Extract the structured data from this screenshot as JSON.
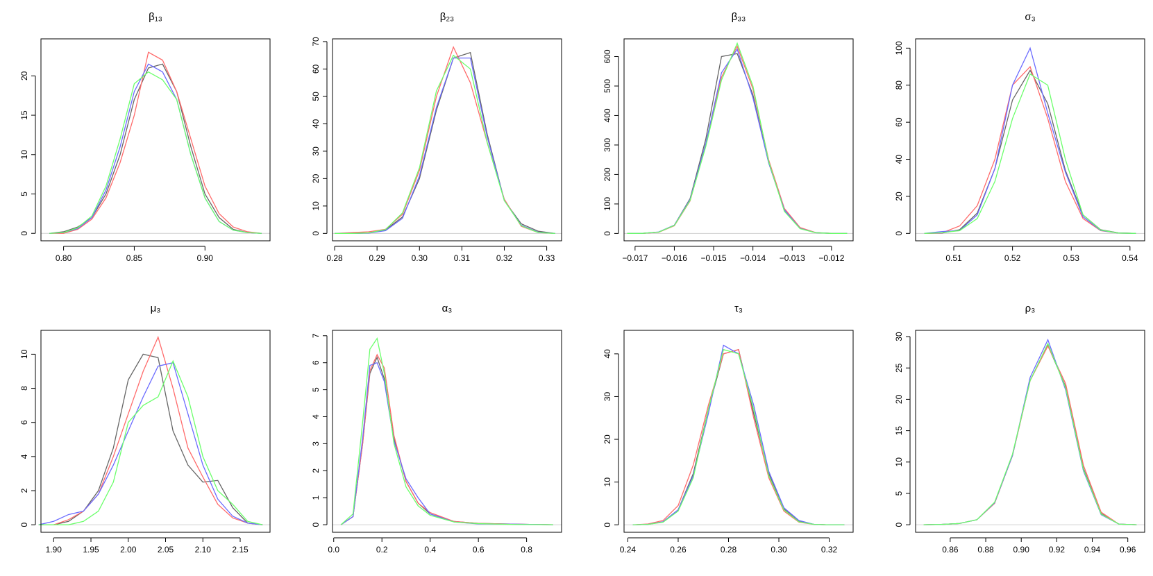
{
  "chart_data": [
    {
      "type": "line",
      "title": "β₁₃",
      "x": [
        0.79,
        0.8,
        0.81,
        0.82,
        0.83,
        0.84,
        0.85,
        0.86,
        0.87,
        0.88,
        0.89,
        0.9,
        0.91,
        0.92,
        0.93,
        0.94
      ],
      "series": [
        {
          "color": "#666666",
          "values": [
            0,
            0.2,
            0.8,
            2,
            5,
            10,
            17,
            21,
            21.5,
            18,
            11,
            5,
            2,
            0.5,
            0.1,
            0
          ]
        },
        {
          "color": "#ff6b6b",
          "values": [
            0,
            0,
            0.5,
            1.8,
            4.5,
            9,
            15,
            23,
            22,
            18,
            12,
            6,
            2.5,
            0.8,
            0.2,
            0
          ]
        },
        {
          "color": "#6b6bff",
          "values": [
            0,
            0.1,
            0.6,
            2,
            5.5,
            11,
            18,
            21.5,
            20.5,
            17,
            10,
            4.5,
            1.5,
            0.4,
            0.1,
            0
          ]
        },
        {
          "color": "#6bff6b",
          "values": [
            0,
            0.1,
            0.7,
            2.2,
            6,
            12,
            19,
            20.5,
            19.5,
            17,
            10,
            4.5,
            1.5,
            0.4,
            0.1,
            0
          ]
        }
      ],
      "xlim": [
        0.784,
        0.946
      ],
      "ylim": [
        -0.95,
        24.7
      ],
      "xticks": [
        {
          "value": 0.8,
          "label": "0.80"
        },
        0.85,
        {
          "value": 0.9,
          "label": "0.90"
        }
      ],
      "yticks": [
        0,
        5,
        10,
        15,
        20
      ]
    },
    {
      "type": "line",
      "title": "β₂₃",
      "x": [
        0.28,
        0.284,
        0.288,
        0.292,
        0.296,
        0.3,
        0.304,
        0.308,
        0.312,
        0.316,
        0.32,
        0.324,
        0.328,
        0.332
      ],
      "series": [
        {
          "color": "#666666",
          "values": [
            0,
            0,
            0.2,
            1.3,
            6,
            20,
            45,
            64,
            66,
            36,
            12,
            3.5,
            0.8,
            0
          ]
        },
        {
          "color": "#ff6b6b",
          "values": [
            0,
            0.3,
            0.6,
            1.5,
            7,
            23,
            50,
            68,
            55,
            33,
            12.5,
            2.6,
            0.3,
            0
          ]
        },
        {
          "color": "#6b6bff",
          "values": [
            0,
            0,
            0.1,
            1,
            5.5,
            21,
            46,
            64,
            64,
            35,
            12,
            3,
            0.4,
            0
          ]
        },
        {
          "color": "#6bff6b",
          "values": [
            0,
            0,
            0.2,
            1.4,
            7.5,
            24,
            52,
            65,
            60,
            33,
            12,
            2.8,
            0.3,
            0
          ]
        }
      ],
      "xlim": [
        0.2795,
        0.3335
      ],
      "ylim": [
        -2.7,
        71
      ],
      "xticks": [
        0.28,
        0.29,
        {
          "value": 0.3,
          "label": "0.30"
        },
        0.31,
        0.32,
        0.33
      ],
      "yticks": [
        0,
        10,
        20,
        30,
        40,
        50,
        60,
        70
      ]
    },
    {
      "type": "line",
      "title": "β₃₃",
      "x": [
        -0.0172,
        -0.0168,
        -0.0164,
        -0.016,
        -0.0156,
        -0.0152,
        -0.0148,
        -0.0144,
        -0.014,
        -0.0136,
        -0.0132,
        -0.0128,
        -0.0124,
        -0.012,
        -0.0116
      ],
      "series": [
        {
          "color": "#666666",
          "values": [
            0,
            0.5,
            4.5,
            28,
            118,
            320,
            600,
            610,
            470,
            240,
            80,
            18,
            2.5,
            0.3,
            0
          ]
        },
        {
          "color": "#ff6b6b",
          "values": [
            0,
            0.4,
            4,
            26,
            110,
            300,
            530,
            635,
            490,
            250,
            85,
            20,
            3,
            0.5,
            0
          ]
        },
        {
          "color": "#6b6bff",
          "values": [
            0,
            0.6,
            5,
            28,
            115,
            305,
            545,
            625,
            460,
            240,
            80,
            17,
            2.5,
            0.3,
            0
          ]
        },
        {
          "color": "#6bff6b",
          "values": [
            0,
            0.5,
            4.5,
            27,
            112,
            295,
            520,
            645,
            500,
            245,
            75,
            16,
            2.2,
            0.2,
            0
          ]
        }
      ],
      "xlim": [
        -0.01728,
        -0.01145
      ],
      "ylim": [
        -25,
        660
      ],
      "xticks": [
        {
          "value": -0.017,
          "label": "−0.017"
        },
        {
          "value": -0.016,
          "label": "−0.016"
        },
        {
          "value": -0.015,
          "label": "−0.015"
        },
        {
          "value": -0.014,
          "label": "−0.014"
        },
        {
          "value": -0.013,
          "label": "−0.013"
        },
        {
          "value": -0.012,
          "label": "−0.012"
        }
      ],
      "yticks": [
        0,
        100,
        200,
        300,
        400,
        500,
        600
      ]
    },
    {
      "type": "line",
      "title": "σ₃",
      "x": [
        0.505,
        0.508,
        0.511,
        0.514,
        0.517,
        0.52,
        0.523,
        0.526,
        0.529,
        0.532,
        0.535,
        0.538,
        0.541
      ],
      "series": [
        {
          "color": "#666666",
          "values": [
            0,
            0.2,
            2,
            11,
            35,
            72,
            88,
            70,
            34,
            10,
            2,
            0.3,
            0
          ]
        },
        {
          "color": "#ff6b6b",
          "values": [
            0,
            0.3,
            4,
            15,
            40,
            80,
            90,
            62,
            28,
            8,
            1.5,
            0.2,
            0
          ]
        },
        {
          "color": "#6b6bff",
          "values": [
            0,
            1,
            1.5,
            10,
            35,
            80,
            100,
            65,
            33,
            9,
            1.6,
            0.2,
            0
          ]
        },
        {
          "color": "#6bff6b",
          "values": [
            0,
            0.4,
            1.5,
            8,
            28,
            62,
            86,
            80,
            40,
            10,
            1.8,
            0.2,
            0
          ]
        }
      ],
      "xlim": [
        0.5035,
        0.5425
      ],
      "ylim": [
        -4,
        105
      ],
      "xticks": [
        0.51,
        0.52,
        0.53,
        0.54
      ],
      "yticks": [
        0,
        20,
        40,
        60,
        80,
        100
      ]
    },
    {
      "type": "line",
      "title": "μ₃",
      "x": [
        1.88,
        1.9,
        1.92,
        1.94,
        1.96,
        1.98,
        2.0,
        2.02,
        2.04,
        2.06,
        2.08,
        2.1,
        2.12,
        2.14,
        2.16,
        2.18
      ],
      "series": [
        {
          "color": "#666666",
          "values": [
            0,
            0,
            0.2,
            0.8,
            2,
            4.5,
            8.5,
            10,
            9.8,
            5.5,
            3.5,
            2.5,
            2.6,
            1,
            0.1,
            0
          ]
        },
        {
          "color": "#ff6b6b",
          "values": [
            0,
            0,
            0.3,
            0.8,
            1.8,
            4,
            6.5,
            9,
            11,
            8,
            4.5,
            2.8,
            1.2,
            0.4,
            0.1,
            0
          ]
        },
        {
          "color": "#6b6bff",
          "values": [
            0,
            0.2,
            0.6,
            0.8,
            1.8,
            3.5,
            5.5,
            7.5,
            9.3,
            9.5,
            6.5,
            3.5,
            1.5,
            0.5,
            0.1,
            0
          ]
        },
        {
          "color": "#6bff6b",
          "values": [
            0,
            0,
            0,
            0.2,
            0.8,
            2.5,
            6,
            7,
            7.5,
            9.6,
            7.5,
            4,
            2,
            1.2,
            0.2,
            0
          ]
        }
      ],
      "xlim": [
        1.883,
        2.19
      ],
      "ylim": [
        -0.44,
        11.4
      ],
      "xticks": [
        {
          "value": 1.9,
          "label": "1.90"
        },
        1.95,
        {
          "value": 2,
          "label": "2.00"
        },
        2.05,
        {
          "value": 2.1,
          "label": "2.10"
        },
        2.15
      ],
      "yticks": [
        0,
        2,
        4,
        6,
        8,
        10
      ]
    },
    {
      "type": "line",
      "title": "α₃",
      "x": [
        0.03,
        0.08,
        0.12,
        0.15,
        0.18,
        0.21,
        0.25,
        0.3,
        0.35,
        0.4,
        0.5,
        0.6,
        0.75,
        0.91
      ],
      "series": [
        {
          "color": "#666666",
          "values": [
            0,
            0.3,
            3,
            5.6,
            6.2,
            5.4,
            3.2,
            1.6,
            0.8,
            0.4,
            0.12,
            0.05,
            0.02,
            0
          ]
        },
        {
          "color": "#ff6b6b",
          "values": [
            0,
            0.3,
            3,
            5.7,
            6.3,
            5.8,
            3.3,
            1.6,
            0.8,
            0.45,
            0.12,
            0.05,
            0.02,
            0
          ]
        },
        {
          "color": "#6b6bff",
          "values": [
            0,
            0.3,
            3.2,
            5.9,
            6,
            5.3,
            3.1,
            1.7,
            1.0,
            0.4,
            0.1,
            0.03,
            0.02,
            0
          ]
        },
        {
          "color": "#6bff6b",
          "values": [
            0,
            0.4,
            3.8,
            6.5,
            6.9,
            5.6,
            3,
            1.4,
            0.7,
            0.35,
            0.1,
            0.04,
            0.01,
            0
          ]
        }
      ],
      "xlim": [
        -0.005,
        0.945
      ],
      "ylim": [
        -0.28,
        7.2
      ],
      "xticks": [
        {
          "value": 0,
          "label": "0.0"
        },
        0.2,
        0.4,
        0.6,
        0.8
      ],
      "yticks": [
        0,
        1,
        2,
        3,
        4,
        5,
        6,
        7
      ]
    },
    {
      "type": "line",
      "title": "τ₃",
      "x": [
        0.242,
        0.248,
        0.254,
        0.26,
        0.266,
        0.272,
        0.278,
        0.284,
        0.29,
        0.296,
        0.302,
        0.308,
        0.314,
        0.32,
        0.326
      ],
      "series": [
        {
          "color": "#666666",
          "values": [
            0,
            0.1,
            0.7,
            3.5,
            12,
            27,
            40,
            41,
            26,
            12,
            3.7,
            0.8,
            0.1,
            0,
            0
          ]
        },
        {
          "color": "#ff6b6b",
          "values": [
            0,
            0.2,
            1,
            4.5,
            14,
            28,
            40,
            41,
            25,
            11,
            3.2,
            0.6,
            0.1,
            0,
            0
          ]
        },
        {
          "color": "#6b6bff",
          "values": [
            0,
            0.1,
            0.7,
            3.5,
            11.5,
            26,
            42,
            40,
            28,
            12.5,
            4,
            1,
            0.1,
            0,
            0
          ]
        },
        {
          "color": "#6bff6b",
          "values": [
            0,
            0.1,
            0.6,
            3.2,
            11,
            27,
            41,
            40,
            27,
            11.5,
            3.5,
            0.7,
            0.1,
            0,
            0
          ]
        }
      ],
      "xlim": [
        0.2385,
        0.3295
      ],
      "ylim": [
        -1.75,
        45.5
      ],
      "xticks": [
        0.24,
        0.26,
        0.28,
        {
          "value": 0.3,
          "label": "0.30"
        },
        0.32
      ],
      "yticks": [
        0,
        10,
        20,
        30,
        40
      ]
    },
    {
      "type": "line",
      "title": "ρ₃",
      "x": [
        0.845,
        0.855,
        0.865,
        0.875,
        0.885,
        0.895,
        0.905,
        0.915,
        0.925,
        0.935,
        0.945,
        0.955,
        0.965
      ],
      "series": [
        {
          "color": "#666666",
          "values": [
            0,
            0.05,
            0.2,
            0.8,
            3.5,
            11,
            23,
            28.6,
            22,
            9,
            1.8,
            0.1,
            0
          ]
        },
        {
          "color": "#ff6b6b",
          "values": [
            0,
            0.05,
            0.2,
            0.8,
            3.4,
            11,
            23,
            28.5,
            22.5,
            9.5,
            2,
            0.1,
            0
          ]
        },
        {
          "color": "#6b6bff",
          "values": [
            0,
            0.05,
            0.2,
            0.8,
            3.5,
            11,
            23.5,
            29.5,
            21.5,
            8.6,
            1.6,
            0.1,
            0
          ]
        },
        {
          "color": "#6bff6b",
          "values": [
            0,
            0.05,
            0.2,
            0.8,
            3.6,
            11.2,
            23,
            28.9,
            21.8,
            8.8,
            1.7,
            0.1,
            0
          ]
        }
      ],
      "xlim": [
        0.8405,
        0.9695
      ],
      "ylim": [
        -1.2,
        31
      ],
      "xticks": [
        0.86,
        0.88,
        {
          "value": 0.9,
          "label": "0.90"
        },
        0.92,
        0.94,
        0.96
      ],
      "yticks": [
        0,
        5,
        10,
        15,
        20,
        25,
        30
      ]
    }
  ]
}
